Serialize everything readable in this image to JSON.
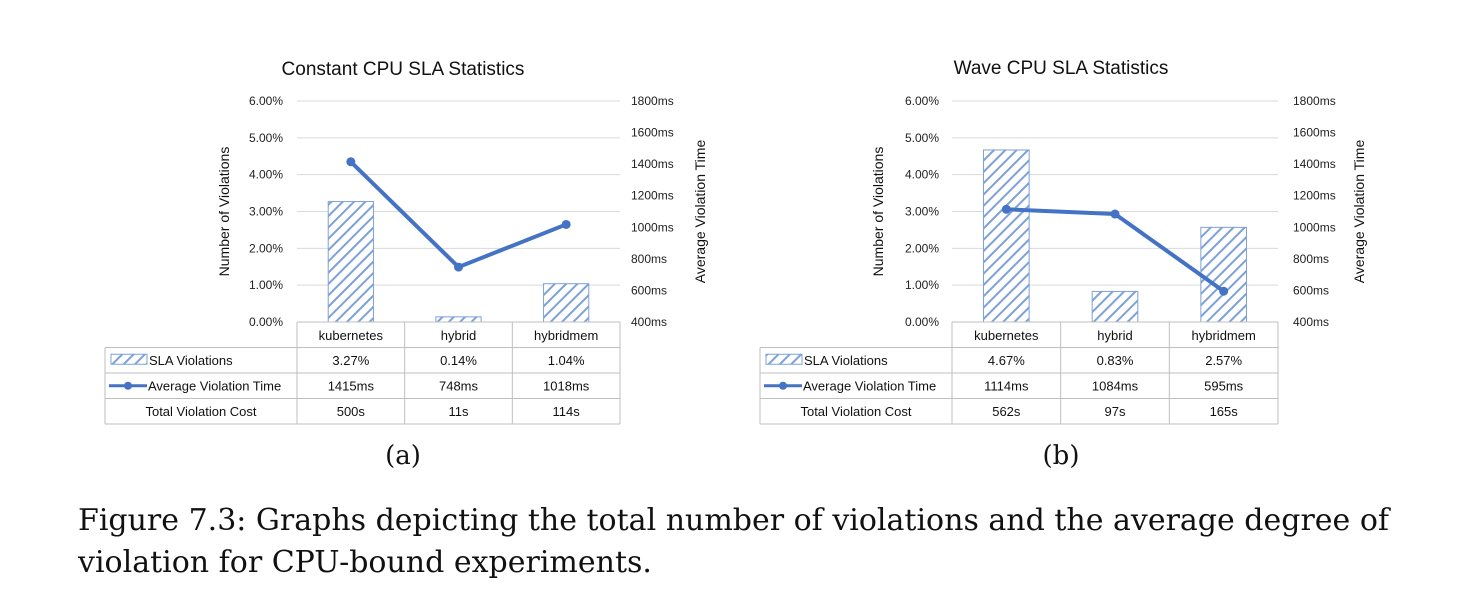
{
  "chart_data": [
    {
      "type": "bar",
      "title": "Constant CPU SLA Statistics",
      "panel_label": "(a)",
      "categories": [
        "kubernetes",
        "hybrid",
        "hybridmem"
      ],
      "ylabel": "Number of Violations",
      "y2label": "Average Violation Time",
      "ylim": [
        0,
        6
      ],
      "y2lim": [
        400,
        1800
      ],
      "yticks": [
        "0.00%",
        "1.00%",
        "2.00%",
        "3.00%",
        "4.00%",
        "5.00%",
        "6.00%"
      ],
      "y2ticks": [
        "400ms",
        "600ms",
        "800ms",
        "1000ms",
        "1200ms",
        "1400ms",
        "1600ms",
        "1800ms"
      ],
      "series": [
        {
          "name": "SLA Violations",
          "kind": "bar",
          "axis": "left",
          "values": [
            3.27,
            0.14,
            1.04
          ],
          "labels": [
            "3.27%",
            "0.14%",
            "1.04%"
          ]
        },
        {
          "name": "Average Violation Time",
          "kind": "line",
          "axis": "right",
          "values": [
            1415,
            748,
            1018
          ],
          "labels": [
            "1415ms",
            "748ms",
            "1018ms"
          ]
        }
      ],
      "table_rows": [
        {
          "name": "Total Violation Cost",
          "labels": [
            "500s",
            "11s",
            "114s"
          ]
        }
      ],
      "colors": {
        "bar": "#4472c4",
        "line": "#4472c4"
      },
      "grid": true
    },
    {
      "type": "bar",
      "title": "Wave CPU SLA Statistics",
      "panel_label": "(b)",
      "categories": [
        "kubernetes",
        "hybrid",
        "hybridmem"
      ],
      "ylabel": "Number of Violations",
      "y2label": "Average Violation Time",
      "ylim": [
        0,
        6
      ],
      "y2lim": [
        400,
        1800
      ],
      "yticks": [
        "0.00%",
        "1.00%",
        "2.00%",
        "3.00%",
        "4.00%",
        "5.00%",
        "6.00%"
      ],
      "y2ticks": [
        "400ms",
        "600ms",
        "800ms",
        "1000ms",
        "1200ms",
        "1400ms",
        "1600ms",
        "1800ms"
      ],
      "series": [
        {
          "name": "SLA Violations",
          "kind": "bar",
          "axis": "left",
          "values": [
            4.67,
            0.83,
            2.57
          ],
          "labels": [
            "4.67%",
            "0.83%",
            "2.57%"
          ]
        },
        {
          "name": "Average Violation Time",
          "kind": "line",
          "axis": "right",
          "values": [
            1114,
            1084,
            595
          ],
          "labels": [
            "1114ms",
            "1084ms",
            "595ms"
          ]
        }
      ],
      "table_rows": [
        {
          "name": "Total Violation Cost",
          "labels": [
            "562s",
            "97s",
            "165s"
          ]
        }
      ],
      "colors": {
        "bar": "#4472c4",
        "line": "#4472c4"
      },
      "grid": true
    }
  ],
  "caption": "Figure 7.3: Graphs depicting the total number of violations and the average degree of violation for CPU-bound experiments."
}
